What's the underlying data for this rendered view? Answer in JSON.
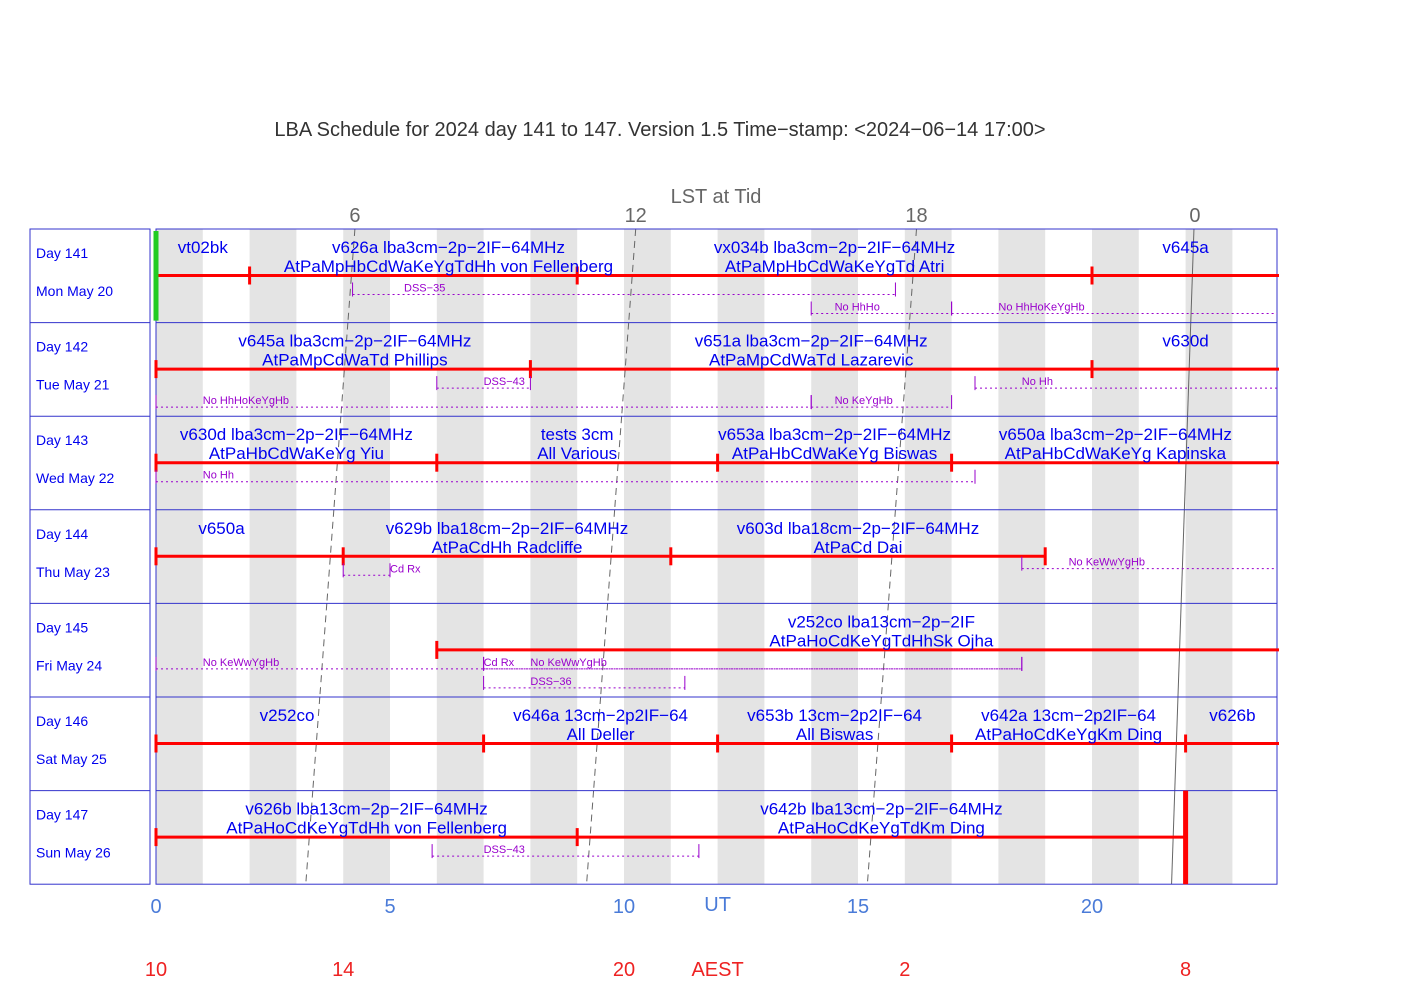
{
  "title": "LBA Schedule for 2024 day 141 to 147. Version 1.5 Time−stamp: <2024−06−14 17:00>",
  "colors": {
    "frame": "#3333cc",
    "label": "#0000ee",
    "bar": "#ff0000",
    "note": "#9900cc",
    "axis_ut": "#4a7bd8",
    "axis_aest": "#ee2222",
    "band": "#e4e4e4",
    "lst": "#666666",
    "marker": "#22cc22"
  },
  "chart_data": {
    "type": "gantt",
    "x_unit": "UT hours",
    "xlim": [
      0,
      24
    ],
    "axes": {
      "lst_label": "LST at Tid",
      "lst_ticks": [
        {
          "x": 4.25,
          "label": "6"
        },
        {
          "x": 10.25,
          "label": "12"
        },
        {
          "x": 16.25,
          "label": "18"
        },
        {
          "x": 22.2,
          "label": "0"
        }
      ],
      "ut_label": "UT",
      "ut_label_x": 12,
      "ut_ticks": [
        {
          "x": 0,
          "label": "0"
        },
        {
          "x": 5,
          "label": "5"
        },
        {
          "x": 10,
          "label": "10"
        },
        {
          "x": 15,
          "label": "15"
        },
        {
          "x": 20,
          "label": "20"
        }
      ],
      "aest_label": "AEST",
      "aest_label_x": 12,
      "aest_ticks": [
        {
          "x": 0,
          "label": "10"
        },
        {
          "x": 4,
          "label": "14"
        },
        {
          "x": 10,
          "label": "20"
        },
        {
          "x": 16,
          "label": "2"
        },
        {
          "x": 22,
          "label": "8"
        }
      ]
    },
    "days": [
      {
        "day": "Day 141",
        "date": "Mon May 20",
        "lst_dash": [
          4.25,
          4.1
        ],
        "bar": [
          0,
          24
        ],
        "ticks": [
          0,
          2,
          9,
          20
        ],
        "labels": [
          {
            "x": 1.0,
            "line": 1,
            "text": "vt02bk"
          },
          {
            "x": 6.25,
            "line": 1,
            "text": "v626a lba3cm−2p−2IF−64MHz"
          },
          {
            "x": 6.25,
            "line": 2,
            "text": "AtPaMpHbCdWaKeYgTdHh von Fellenberg"
          },
          {
            "x": 14.5,
            "line": 1,
            "text": "vx034b lba3cm−2p−2IF−64MHz"
          },
          {
            "x": 14.5,
            "line": 2,
            "text": "AtPaMpHbCdWaKeYgTd Atri"
          },
          {
            "x": 22.0,
            "line": 1,
            "text": "v645a"
          }
        ],
        "notes": [
          {
            "start": 4.2,
            "end": 15.8,
            "row": 1,
            "label": "DSS−35",
            "label_x": 5.3
          },
          {
            "start": 14.0,
            "end": 17.0,
            "row": 2,
            "label": "No HhHo",
            "label_x": 14.5
          },
          {
            "start": 17.0,
            "end": 24,
            "row": 2,
            "label": "No HhHoKeYgHb",
            "label_x": 18.0
          }
        ],
        "marker": 0
      },
      {
        "day": "Day 142",
        "date": "Tue May 21",
        "lst_dash": [
          4.1,
          3.95
        ],
        "bar": [
          0,
          24
        ],
        "ticks": [
          0,
          8,
          20
        ],
        "labels": [
          {
            "x": 4.25,
            "line": 1,
            "text": "v645a lba3cm−2p−2IF−64MHz"
          },
          {
            "x": 4.25,
            "line": 2,
            "text": "AtPaMpCdWaTd Phillips"
          },
          {
            "x": 14.0,
            "line": 1,
            "text": "v651a lba3cm−2p−2IF−64MHz"
          },
          {
            "x": 14.0,
            "line": 2,
            "text": "AtPaMpCdWaTd Lazarevic"
          },
          {
            "x": 22.0,
            "line": 1,
            "text": "v630d"
          }
        ],
        "notes": [
          {
            "start": 6.0,
            "end": 8.0,
            "row": 1,
            "label": "DSS−43",
            "label_x": 7.0
          },
          {
            "start": 17.5,
            "end": 24,
            "row": 1,
            "label": "No Hh",
            "label_x": 18.5
          },
          {
            "start": 0,
            "end": 14.0,
            "row": 2,
            "label": "No HhHoKeYgHb",
            "label_x": 1.0
          },
          {
            "start": 14.0,
            "end": 17.0,
            "row": 2,
            "label": "No KeYgHb",
            "label_x": 14.5
          }
        ]
      },
      {
        "day": "Day 143",
        "date": "Wed May 22",
        "lst_dash": [
          3.95,
          3.8
        ],
        "bar": [
          0,
          24
        ],
        "ticks": [
          0,
          6,
          12,
          17
        ],
        "labels": [
          {
            "x": 3.0,
            "line": 1,
            "text": "v630d lba3cm−2p−2IF−64MHz"
          },
          {
            "x": 3.0,
            "line": 2,
            "text": "AtPaHbCdWaKeYg Yiu"
          },
          {
            "x": 9.0,
            "line": 1,
            "text": "tests 3cm"
          },
          {
            "x": 9.0,
            "line": 2,
            "text": "All Various"
          },
          {
            "x": 14.5,
            "line": 1,
            "text": "v653a lba3cm−2p−2IF−64MHz"
          },
          {
            "x": 14.5,
            "line": 2,
            "text": "AtPaHbCdWaKeYg Biswas"
          },
          {
            "x": 20.5,
            "line": 1,
            "text": "v650a lba3cm−2p−2IF−64MHz"
          },
          {
            "x": 20.5,
            "line": 2,
            "text": "AtPaHbCdWaKeYg Kapinska"
          }
        ],
        "notes": [
          {
            "start": 0,
            "end": 17.5,
            "row": 1,
            "label": "No Hh",
            "label_x": 1.0
          }
        ]
      },
      {
        "day": "Day 144",
        "date": "Thu May 23",
        "lst_dash": [
          3.8,
          3.65
        ],
        "bar": [
          0,
          19
        ],
        "ticks": [
          0,
          4,
          11,
          19
        ],
        "labels": [
          {
            "x": 1.4,
            "line": 1,
            "text": "v650a"
          },
          {
            "x": 7.5,
            "line": 1,
            "text": "v629b lba18cm−2p−2IF−64MHz"
          },
          {
            "x": 7.5,
            "line": 2,
            "text": "AtPaCdHh Radcliffe"
          },
          {
            "x": 15.0,
            "line": 1,
            "text": "v603d lba18cm−2p−2IF−64MHz"
          },
          {
            "x": 15.0,
            "line": 2,
            "text": "AtPaCd Dai"
          }
        ],
        "notes": [
          {
            "start": 4.0,
            "end": 5.0,
            "row": 1,
            "label": "Cd Rx",
            "label_x": 5.0
          },
          {
            "start": 18.5,
            "end": 24,
            "row": 0.65,
            "label": "No KeWwYgHb",
            "label_x": 19.5
          }
        ]
      },
      {
        "day": "Day 145",
        "date": "Fri May 24",
        "lst_dash": [
          3.65,
          3.5
        ],
        "bar": [
          6,
          24
        ],
        "ticks": [
          6
        ],
        "labels": [
          {
            "x": 15.5,
            "line": 1,
            "text": "v252co lba13cm−2p−2IF"
          },
          {
            "x": 15.5,
            "line": 2,
            "text": "AtPaHoCdKeYgTdHhSk Ojha"
          }
        ],
        "notes": [
          {
            "start": 0,
            "end": 18.5,
            "row": 1,
            "label": "No KeWwYgHb",
            "label_x": 1.0
          },
          {
            "start": 7.0,
            "end": 7.0,
            "row": 1,
            "label": "Cd Rx",
            "label_x": 7.0
          },
          {
            "start": 7.0,
            "end": 18.5,
            "row": 1,
            "label": "No KeWwYgHb",
            "label_x": 8.0
          },
          {
            "start": 7.0,
            "end": 11.3,
            "row": 2,
            "label": "DSS−36",
            "label_x": 8.0
          }
        ]
      },
      {
        "day": "Day 146",
        "date": "Sat May 25",
        "lst_dash": [
          3.5,
          3.35
        ],
        "bar": [
          0,
          24
        ],
        "ticks": [
          0,
          7,
          12,
          17,
          22
        ],
        "labels": [
          {
            "x": 2.8,
            "line": 1,
            "text": "v252co"
          },
          {
            "x": 9.5,
            "line": 1,
            "text": "v646a 13cm−2p2IF−64"
          },
          {
            "x": 9.5,
            "line": 2,
            "text": "All Deller"
          },
          {
            "x": 14.5,
            "line": 1,
            "text": "v653b 13cm−2p2IF−64"
          },
          {
            "x": 14.5,
            "line": 2,
            "text": "All Biswas"
          },
          {
            "x": 19.5,
            "line": 1,
            "text": "v642a 13cm−2p2IF−64"
          },
          {
            "x": 19.5,
            "line": 2,
            "text": "AtPaHoCdKeYgKm Ding"
          },
          {
            "x": 23.0,
            "line": 1,
            "text": "v626b"
          }
        ],
        "notes": []
      },
      {
        "day": "Day 147",
        "date": "Sun May 26",
        "lst_dash": [
          3.35,
          3.2
        ],
        "bar": [
          0,
          22
        ],
        "ticks": [
          0,
          9
        ],
        "labels": [
          {
            "x": 4.5,
            "line": 1,
            "text": "v626b lba13cm−2p−2IF−64MHz"
          },
          {
            "x": 4.5,
            "line": 2,
            "text": "AtPaHoCdKeYgTdHh von Fellenberg"
          },
          {
            "x": 15.5,
            "line": 1,
            "text": "v642b lba13cm−2p−2IF−64MHz"
          },
          {
            "x": 15.5,
            "line": 2,
            "text": "AtPaHoCdKeYgTdKm Ding"
          }
        ],
        "notes": [
          {
            "start": 5.9,
            "end": 11.6,
            "row": 1,
            "label": "DSS−43",
            "label_x": 7.0
          }
        ],
        "end_marker": 22
      }
    ]
  }
}
